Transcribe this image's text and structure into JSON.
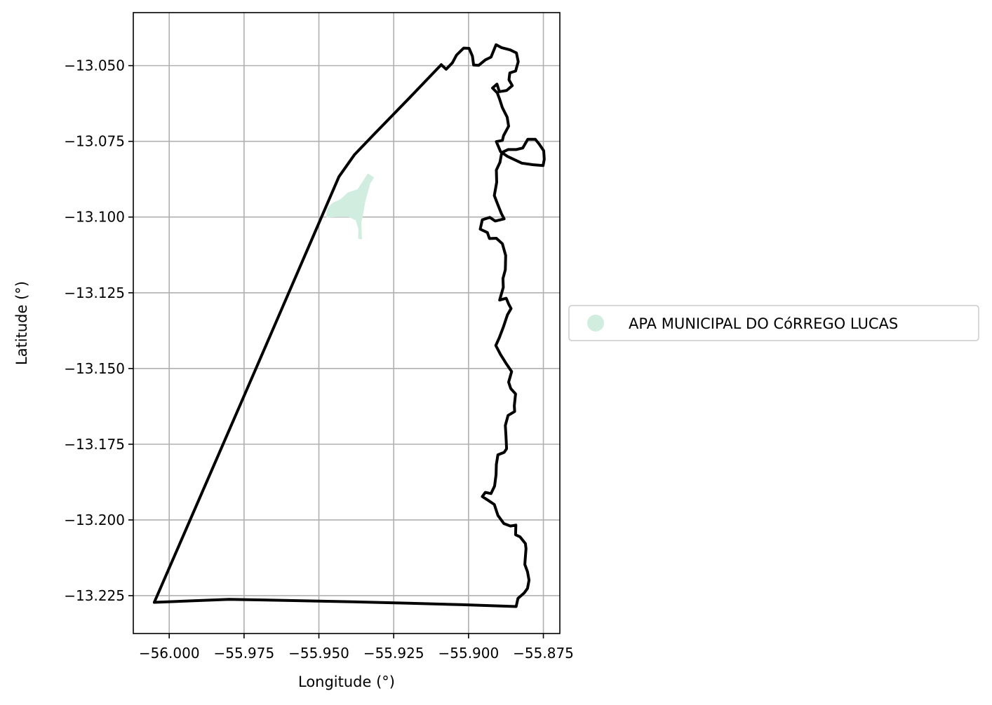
{
  "chart_data": {
    "type": "map",
    "xlabel": "Longitude (°)",
    "ylabel": "Latitude (°)",
    "xlim": [
      -56.012,
      -55.8695
    ],
    "ylim": [
      -13.2375,
      -13.0325
    ],
    "grid": true,
    "x_ticks": [
      {
        "value": -56.0,
        "label": "−56.000"
      },
      {
        "value": -55.975,
        "label": "−55.975"
      },
      {
        "value": -55.95,
        "label": "−55.950"
      },
      {
        "value": -55.925,
        "label": "−55.925"
      },
      {
        "value": -55.9,
        "label": "−55.900"
      },
      {
        "value": -55.875,
        "label": "−55.875"
      }
    ],
    "y_ticks": [
      {
        "value": -13.05,
        "label": "−13.050"
      },
      {
        "value": -13.075,
        "label": "−13.075"
      },
      {
        "value": -13.1,
        "label": "−13.100"
      },
      {
        "value": -13.125,
        "label": "−13.125"
      },
      {
        "value": -13.15,
        "label": "−13.150"
      },
      {
        "value": -13.175,
        "label": "−13.175"
      },
      {
        "value": -13.2,
        "label": "−13.200"
      },
      {
        "value": -13.225,
        "label": "−13.225"
      }
    ],
    "legend": {
      "placement": "center-left outside",
      "entries": [
        {
          "label": "APA MUNICIPAL DO CóRREGO LUCAS",
          "color": "#d0ede0"
        }
      ]
    },
    "boundary": {
      "color": "#000000",
      "points": [
        [
          -56.005,
          -13.2272
        ],
        [
          -55.9887,
          -13.1902
        ],
        [
          -55.9719,
          -13.152
        ],
        [
          -55.9518,
          -13.1061
        ],
        [
          -55.9433,
          -13.0867
        ],
        [
          -55.9381,
          -13.0794
        ],
        [
          -55.9314,
          -13.0725
        ],
        [
          -55.9199,
          -13.0608
        ],
        [
          -55.9091,
          -13.0497
        ],
        [
          -55.9075,
          -13.0512
        ],
        [
          -55.9054,
          -13.0491
        ],
        [
          -55.904,
          -13.0465
        ],
        [
          -55.9016,
          -13.0442
        ],
        [
          -55.8998,
          -13.0443
        ],
        [
          -55.8987,
          -13.0469
        ],
        [
          -55.8983,
          -13.0498
        ],
        [
          -55.8966,
          -13.0499
        ],
        [
          -55.8944,
          -13.0481
        ],
        [
          -55.8925,
          -13.0472
        ],
        [
          -55.8908,
          -13.0431
        ],
        [
          -55.8889,
          -13.0441
        ],
        [
          -55.8861,
          -13.0448
        ],
        [
          -55.884,
          -13.0458
        ],
        [
          -55.8834,
          -13.0487
        ],
        [
          -55.8843,
          -13.0518
        ],
        [
          -55.8862,
          -13.0524
        ],
        [
          -55.8865,
          -13.0547
        ],
        [
          -55.8854,
          -13.0566
        ],
        [
          -55.8873,
          -13.0582
        ],
        [
          -55.8897,
          -13.0586
        ],
        [
          -55.8905,
          -13.0561
        ],
        [
          -55.892,
          -13.0574
        ],
        [
          -55.8904,
          -13.059
        ],
        [
          -55.8896,
          -13.0611
        ],
        [
          -55.8887,
          -13.0639
        ],
        [
          -55.8871,
          -13.067
        ],
        [
          -55.8866,
          -13.07
        ],
        [
          -55.8883,
          -13.0731
        ],
        [
          -55.8887,
          -13.0747
        ],
        [
          -55.8907,
          -13.0751
        ],
        [
          -55.8893,
          -13.0784
        ],
        [
          -55.8871,
          -13.0799
        ],
        [
          -55.8822,
          -13.0822
        ],
        [
          -55.8786,
          -13.0827
        ],
        [
          -55.8751,
          -13.083
        ],
        [
          -55.8747,
          -13.0809
        ],
        [
          -55.8749,
          -13.0781
        ],
        [
          -55.8764,
          -13.0759
        ],
        [
          -55.8777,
          -13.0743
        ],
        [
          -55.8802,
          -13.0743
        ],
        [
          -55.8819,
          -13.0772
        ],
        [
          -55.8841,
          -13.0777
        ],
        [
          -55.8868,
          -13.0777
        ],
        [
          -55.8889,
          -13.0787
        ],
        [
          -55.8895,
          -13.0819
        ],
        [
          -55.8907,
          -13.0845
        ],
        [
          -55.8906,
          -13.0885
        ],
        [
          -55.8914,
          -13.0929
        ],
        [
          -55.8901,
          -13.0962
        ],
        [
          -55.889,
          -13.0989
        ],
        [
          -55.8881,
          -13.1006
        ],
        [
          -55.8911,
          -13.1013
        ],
        [
          -55.8929,
          -13.1001
        ],
        [
          -55.8954,
          -13.1009
        ],
        [
          -55.8961,
          -13.104
        ],
        [
          -55.8937,
          -13.1051
        ],
        [
          -55.893,
          -13.1071
        ],
        [
          -55.8907,
          -13.107
        ],
        [
          -55.8887,
          -13.1088
        ],
        [
          -55.8876,
          -13.1127
        ],
        [
          -55.8877,
          -13.1174
        ],
        [
          -55.8885,
          -13.1203
        ],
        [
          -55.8884,
          -13.1232
        ],
        [
          -55.8896,
          -13.1274
        ],
        [
          -55.8874,
          -13.1268
        ],
        [
          -55.8866,
          -13.1287
        ],
        [
          -55.8858,
          -13.1302
        ],
        [
          -55.887,
          -13.1323
        ],
        [
          -55.8883,
          -13.1361
        ],
        [
          -55.8897,
          -13.1398
        ],
        [
          -55.8909,
          -13.1424
        ],
        [
          -55.8893,
          -13.1454
        ],
        [
          -55.8874,
          -13.1484
        ],
        [
          -55.8856,
          -13.151
        ],
        [
          -55.8866,
          -13.1545
        ],
        [
          -55.8859,
          -13.1566
        ],
        [
          -55.8843,
          -13.1584
        ],
        [
          -55.8847,
          -13.1623
        ],
        [
          -55.8846,
          -13.1642
        ],
        [
          -55.8868,
          -13.1655
        ],
        [
          -55.8877,
          -13.1688
        ],
        [
          -55.8875,
          -13.1722
        ],
        [
          -55.8873,
          -13.1765
        ],
        [
          -55.8881,
          -13.1777
        ],
        [
          -55.8902,
          -13.1785
        ],
        [
          -55.8907,
          -13.1817
        ],
        [
          -55.8908,
          -13.185
        ],
        [
          -55.8913,
          -13.1888
        ],
        [
          -55.8925,
          -13.1913
        ],
        [
          -55.8944,
          -13.1909
        ],
        [
          -55.8954,
          -13.1923
        ],
        [
          -55.8935,
          -13.1935
        ],
        [
          -55.8914,
          -13.1949
        ],
        [
          -55.8902,
          -13.1985
        ],
        [
          -55.8882,
          -13.2012
        ],
        [
          -55.886,
          -13.202
        ],
        [
          -55.8842,
          -13.2017
        ],
        [
          -55.8843,
          -13.2049
        ],
        [
          -55.8828,
          -13.2056
        ],
        [
          -55.881,
          -13.2078
        ],
        [
          -55.8808,
          -13.2095
        ],
        [
          -55.881,
          -13.2121
        ],
        [
          -55.8812,
          -13.2147
        ],
        [
          -55.8803,
          -13.2171
        ],
        [
          -55.8798,
          -13.2199
        ],
        [
          -55.8803,
          -13.2226
        ],
        [
          -55.8814,
          -13.2241
        ],
        [
          -55.8835,
          -13.2259
        ],
        [
          -55.8841,
          -13.2286
        ],
        [
          -55.902,
          -13.228
        ],
        [
          -55.92,
          -13.2275
        ],
        [
          -55.94,
          -13.227
        ],
        [
          -55.96,
          -13.2266
        ],
        [
          -55.98,
          -13.2262
        ],
        [
          -56.005,
          -13.2272
        ]
      ]
    },
    "areas": [
      {
        "name": "APA MUNICIPAL DO CóRREGO LUCAS",
        "color": "#d0ede0",
        "points": [
          [
            -55.9336,
            -13.0858
          ],
          [
            -55.9318,
            -13.087
          ],
          [
            -55.933,
            -13.0888
          ],
          [
            -55.9346,
            -13.0946
          ],
          [
            -55.9355,
            -13.0996
          ],
          [
            -55.936,
            -13.1018
          ],
          [
            -55.9358,
            -13.1072
          ],
          [
            -55.9367,
            -13.107
          ],
          [
            -55.9366,
            -13.104
          ],
          [
            -55.9375,
            -13.101
          ],
          [
            -55.94,
            -13.0998
          ],
          [
            -55.944,
            -13.0998
          ],
          [
            -55.9474,
            -13.1
          ],
          [
            -55.947,
            -13.0972
          ],
          [
            -55.9454,
            -13.0955
          ],
          [
            -55.9426,
            -13.0942
          ],
          [
            -55.9402,
            -13.092
          ],
          [
            -55.937,
            -13.091
          ],
          [
            -55.935,
            -13.088
          ]
        ]
      }
    ]
  }
}
